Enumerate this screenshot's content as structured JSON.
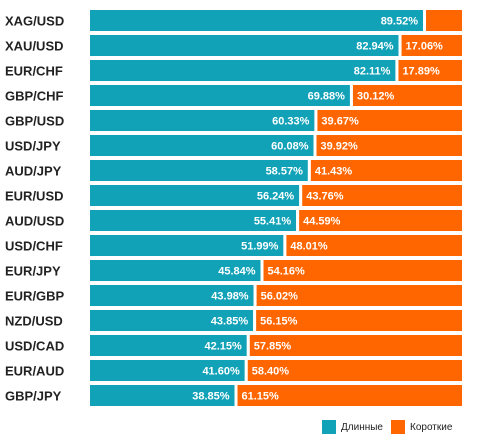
{
  "colors": {
    "long": "#12a2b8",
    "short": "#ff6600",
    "divider": "#ffffff"
  },
  "legend": {
    "long_label": "Длинные",
    "short_label": "Короткие"
  },
  "chart_data": {
    "type": "bar",
    "orientation": "horizontal",
    "stacked": true,
    "categories": [
      "XAG/USD",
      "XAU/USD",
      "EUR/CHF",
      "GBP/CHF",
      "GBP/USD",
      "USD/JPY",
      "AUD/JPY",
      "EUR/USD",
      "AUD/USD",
      "USD/CHF",
      "EUR/JPY",
      "EUR/GBP",
      "NZD/USD",
      "USD/CAD",
      "EUR/AUD",
      "GBP/JPY"
    ],
    "series": [
      {
        "name": "Длинные",
        "values": [
          89.52,
          82.94,
          82.11,
          69.88,
          60.33,
          60.08,
          58.57,
          56.24,
          55.41,
          51.99,
          45.84,
          43.98,
          43.85,
          42.15,
          41.6,
          38.85
        ],
        "labels": [
          "89.52%",
          "82.94%",
          "82.11%",
          "69.88%",
          "60.33%",
          "60.08%",
          "58.57%",
          "56.24%",
          "55.41%",
          "51.99%",
          "45.84%",
          "43.98%",
          "43.85%",
          "42.15%",
          "41.60%",
          "38.85%"
        ]
      },
      {
        "name": "Короткие",
        "values": [
          10.48,
          17.06,
          17.89,
          30.12,
          39.67,
          39.92,
          41.43,
          43.76,
          44.59,
          48.01,
          54.16,
          56.02,
          56.15,
          57.85,
          58.4,
          61.15
        ],
        "labels": [
          "",
          "17.06%",
          "17.89%",
          "30.12%",
          "39.67%",
          "39.92%",
          "41.43%",
          "43.76%",
          "44.59%",
          "48.01%",
          "54.16%",
          "56.02%",
          "56.15%",
          "57.85%",
          "58.40%",
          "61.15%"
        ]
      }
    ],
    "xlim": [
      0,
      100
    ],
    "grid": false,
    "legend_position": "bottom-right"
  }
}
